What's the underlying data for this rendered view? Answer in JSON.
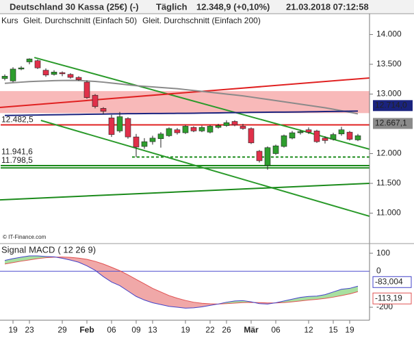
{
  "header": {
    "instrument": "Deutschland 30 Kassa (25€) (-)",
    "interval": "Täglich",
    "last": "12.348,9 (+0,10%)",
    "timestamp": "21.03.2018 07:12:58",
    "copyright": "© IT-Finance.com"
  },
  "chart_data": [
    {
      "type": "candlestick",
      "price_label": "Kurs",
      "up_color": "#2e9e2e",
      "down_color": "#e0304a",
      "ylim": [
        10500,
        14350
      ],
      "yticks": [
        {
          "value": 14000,
          "label": "14.000"
        },
        {
          "value": 13500,
          "label": "13.500"
        },
        {
          "value": 13000,
          "label": "13.000"
        },
        {
          "value": 12000,
          "label": "12.000"
        },
        {
          "value": 11500,
          "label": "11.500"
        },
        {
          "value": 11000,
          "label": "11.000"
        }
      ],
      "open": [
        13260,
        13220,
        13420,
        13540,
        13560,
        13400,
        13330,
        13360,
        13330,
        13280,
        13200,
        12980,
        12760,
        12600,
        12380,
        12590,
        12280,
        12120,
        12200,
        12250,
        12300,
        12400,
        12350,
        12440,
        12380,
        12360,
        12440,
        12470,
        12540,
        12460,
        12420,
        12040,
        11800,
        12000,
        12120,
        12260,
        12350,
        12400,
        12380,
        12260,
        12240,
        12330,
        12360,
        12230
      ],
      "high": [
        13330,
        13450,
        13470,
        13600,
        13580,
        13430,
        13400,
        13380,
        13350,
        13300,
        13230,
        13000,
        12780,
        12650,
        12700,
        12610,
        12330,
        12260,
        12300,
        12360,
        12440,
        12430,
        12480,
        12460,
        12470,
        12480,
        12500,
        12560,
        12560,
        12500,
        12440,
        12060,
        12120,
        12150,
        12320,
        12380,
        12400,
        12440,
        12400,
        12290,
        12350,
        12450,
        12380,
        12330
      ],
      "low": [
        13230,
        13200,
        13400,
        13500,
        13420,
        13290,
        13310,
        13300,
        13260,
        13220,
        12920,
        12760,
        12660,
        12280,
        12350,
        12250,
        11940,
        12080,
        12150,
        12100,
        12280,
        12320,
        12330,
        12360,
        12360,
        12340,
        12420,
        12450,
        12460,
        12400,
        12160,
        11850,
        11730,
        11980,
        12100,
        12240,
        12320,
        12330,
        12180,
        12170,
        12220,
        12300,
        12220,
        12210
      ],
      "close": [
        13300,
        13420,
        13440,
        13590,
        13440,
        13320,
        13370,
        13340,
        13280,
        13240,
        12940,
        12790,
        12710,
        12320,
        12620,
        12280,
        12110,
        12200,
        12260,
        12330,
        12420,
        12350,
        12460,
        12380,
        12440,
        12460,
        12470,
        12520,
        12480,
        12420,
        12180,
        11880,
        12100,
        12130,
        12300,
        12350,
        12370,
        12360,
        12200,
        12220,
        12320,
        12400,
        12240,
        12300
      ],
      "series": [
        {
          "name": "Gleit. Durchschnitt (Einfach 50)",
          "color": "#8a8a8a",
          "values": [
            13180,
            13190,
            13200,
            13210,
            13215,
            13220,
            13225,
            13228,
            13230,
            13228,
            13220,
            13212,
            13200,
            13185,
            13170,
            13155,
            13140,
            13130,
            13120,
            13110,
            13100,
            13090,
            13075,
            13060,
            13045,
            13030,
            13015,
            13000,
            12985,
            12970,
            12950,
            12930,
            12910,
            12890,
            12870,
            12850,
            12830,
            12810,
            12790,
            12770,
            12745,
            12720,
            12695,
            12667.1
          ],
          "value_labels": [
            null,
            null,
            null,
            null,
            null,
            null,
            null,
            null,
            null,
            null,
            null,
            null,
            null,
            null,
            null,
            null,
            null,
            null,
            null,
            null,
            null,
            null,
            null,
            null,
            null,
            null,
            null,
            null,
            null,
            null,
            null,
            null,
            null,
            null,
            null,
            null,
            null,
            null,
            null,
            null,
            null,
            null,
            null,
            "12.667,1"
          ]
        },
        {
          "name": "Gleit. Durchschnitt (Einfach 200)",
          "color": "#1a237e",
          "values": [
            12640,
            12642,
            12644,
            12646,
            12648,
            12650,
            12652,
            12654,
            12656,
            12658,
            12660,
            12662,
            12664,
            12666,
            12668,
            12670,
            12671,
            12672,
            12673,
            12674,
            12675,
            12676,
            12677,
            12678,
            12680,
            12682,
            12684,
            12686,
            12688,
            12690,
            12692,
            12694,
            12695,
            12696,
            12697,
            12698,
            12700,
            12702,
            12704,
            12706,
            12708,
            12710,
            12712,
            12714.0
          ],
          "value_labels": [
            null,
            null,
            null,
            null,
            null,
            null,
            null,
            null,
            null,
            null,
            null,
            null,
            null,
            null,
            null,
            null,
            null,
            null,
            null,
            null,
            null,
            null,
            null,
            null,
            null,
            null,
            null,
            null,
            null,
            null,
            null,
            null,
            null,
            null,
            null,
            null,
            null,
            null,
            null,
            null,
            null,
            null,
            null,
            "12.714,0"
          ]
        }
      ],
      "zones": [
        {
          "from": 12680,
          "to": 13050,
          "color": "#f6a8a8"
        }
      ],
      "levels": [
        {
          "value": 12482.5,
          "label": "12.482,5",
          "color": "#e02020",
          "style": "solid",
          "start": 0
        },
        {
          "value": 11941.6,
          "label": "11.941,6",
          "color": "#1a8a1a",
          "style": "dotted",
          "start": 16
        },
        {
          "value": 11798.5,
          "label": "11.798,5",
          "color": "#1a8a1a",
          "style": "solid",
          "start": 0
        },
        {
          "value": 11760,
          "color": "#1a8a1a",
          "style": "solid",
          "start": 0
        }
      ],
      "trend_lines": [
        {
          "color": "#2a9a2a",
          "x": [
            3.6,
            44.4
          ],
          "y": [
            13614,
            12074
          ]
        },
        {
          "color": "#2a9a2a",
          "x": [
            4.4,
            44.4
          ],
          "y": [
            12557,
            10948
          ]
        },
        {
          "color": "#e02020",
          "x": [
            -0.6,
            44.4
          ],
          "y": [
            12775,
            13270
          ]
        },
        {
          "color": "#1a8a1a",
          "x": [
            -0.6,
            44.4
          ],
          "y": [
            11223,
            11500
          ]
        }
      ]
    },
    {
      "type": "macd",
      "params": "( 12 26 9)",
      "categories": [
        null,
        "19",
        null,
        "23",
        null,
        null,
        null,
        "29",
        null,
        null,
        "Feb",
        null,
        null,
        "06",
        null,
        null,
        "09",
        null,
        "13",
        null,
        null,
        null,
        "19",
        null,
        null,
        "22",
        null,
        "26",
        null,
        null,
        "Mär",
        null,
        null,
        "06",
        null,
        null,
        null,
        "12",
        null,
        null,
        "15",
        null,
        "19",
        null
      ],
      "ylim": [
        -272,
        146
      ],
      "yticks": [
        100,
        0,
        -200
      ],
      "zero_color": "#5050d0",
      "fill_up": "#a8e0a0",
      "fill_down": "#f0a8a8",
      "series": [
        {
          "name": "Signal",
          "color": "#e05050",
          "values": [
            40,
            48,
            56,
            63,
            70,
            75,
            78,
            79,
            77,
            73,
            66,
            55,
            40,
            22,
            3,
            -20,
            -45,
            -70,
            -95,
            -115,
            -135,
            -150,
            -162,
            -172,
            -178,
            -181,
            -182,
            -180,
            -177,
            -174,
            -173,
            -174,
            -176,
            -176,
            -174,
            -170,
            -165,
            -160,
            -156,
            -151,
            -144,
            -135,
            -126,
            -113.19
          ],
          "value_labels": [
            null,
            null,
            null,
            null,
            null,
            null,
            null,
            null,
            null,
            null,
            null,
            null,
            null,
            null,
            null,
            null,
            null,
            null,
            null,
            null,
            null,
            null,
            null,
            null,
            null,
            null,
            null,
            null,
            null,
            null,
            null,
            null,
            null,
            null,
            null,
            null,
            null,
            null,
            null,
            null,
            null,
            null,
            null,
            "-113,19"
          ]
        },
        {
          "name": "MACD",
          "color": "#4040c8",
          "values": [
            60,
            70,
            78,
            85,
            85,
            82,
            80,
            72,
            62,
            50,
            30,
            5,
            -30,
            -60,
            -80,
            -110,
            -140,
            -160,
            -175,
            -185,
            -195,
            -200,
            -205,
            -203,
            -198,
            -190,
            -182,
            -172,
            -165,
            -163,
            -170,
            -180,
            -182,
            -175,
            -165,
            -155,
            -145,
            -140,
            -138,
            -130,
            -115,
            -100,
            -95,
            -83.004
          ],
          "value_labels": [
            null,
            null,
            null,
            null,
            null,
            null,
            null,
            null,
            null,
            null,
            null,
            null,
            null,
            null,
            null,
            null,
            null,
            null,
            null,
            null,
            null,
            null,
            null,
            null,
            null,
            null,
            null,
            null,
            null,
            null,
            null,
            null,
            null,
            null,
            null,
            null,
            null,
            null,
            null,
            null,
            null,
            null,
            null,
            "-83,004"
          ]
        }
      ]
    }
  ]
}
